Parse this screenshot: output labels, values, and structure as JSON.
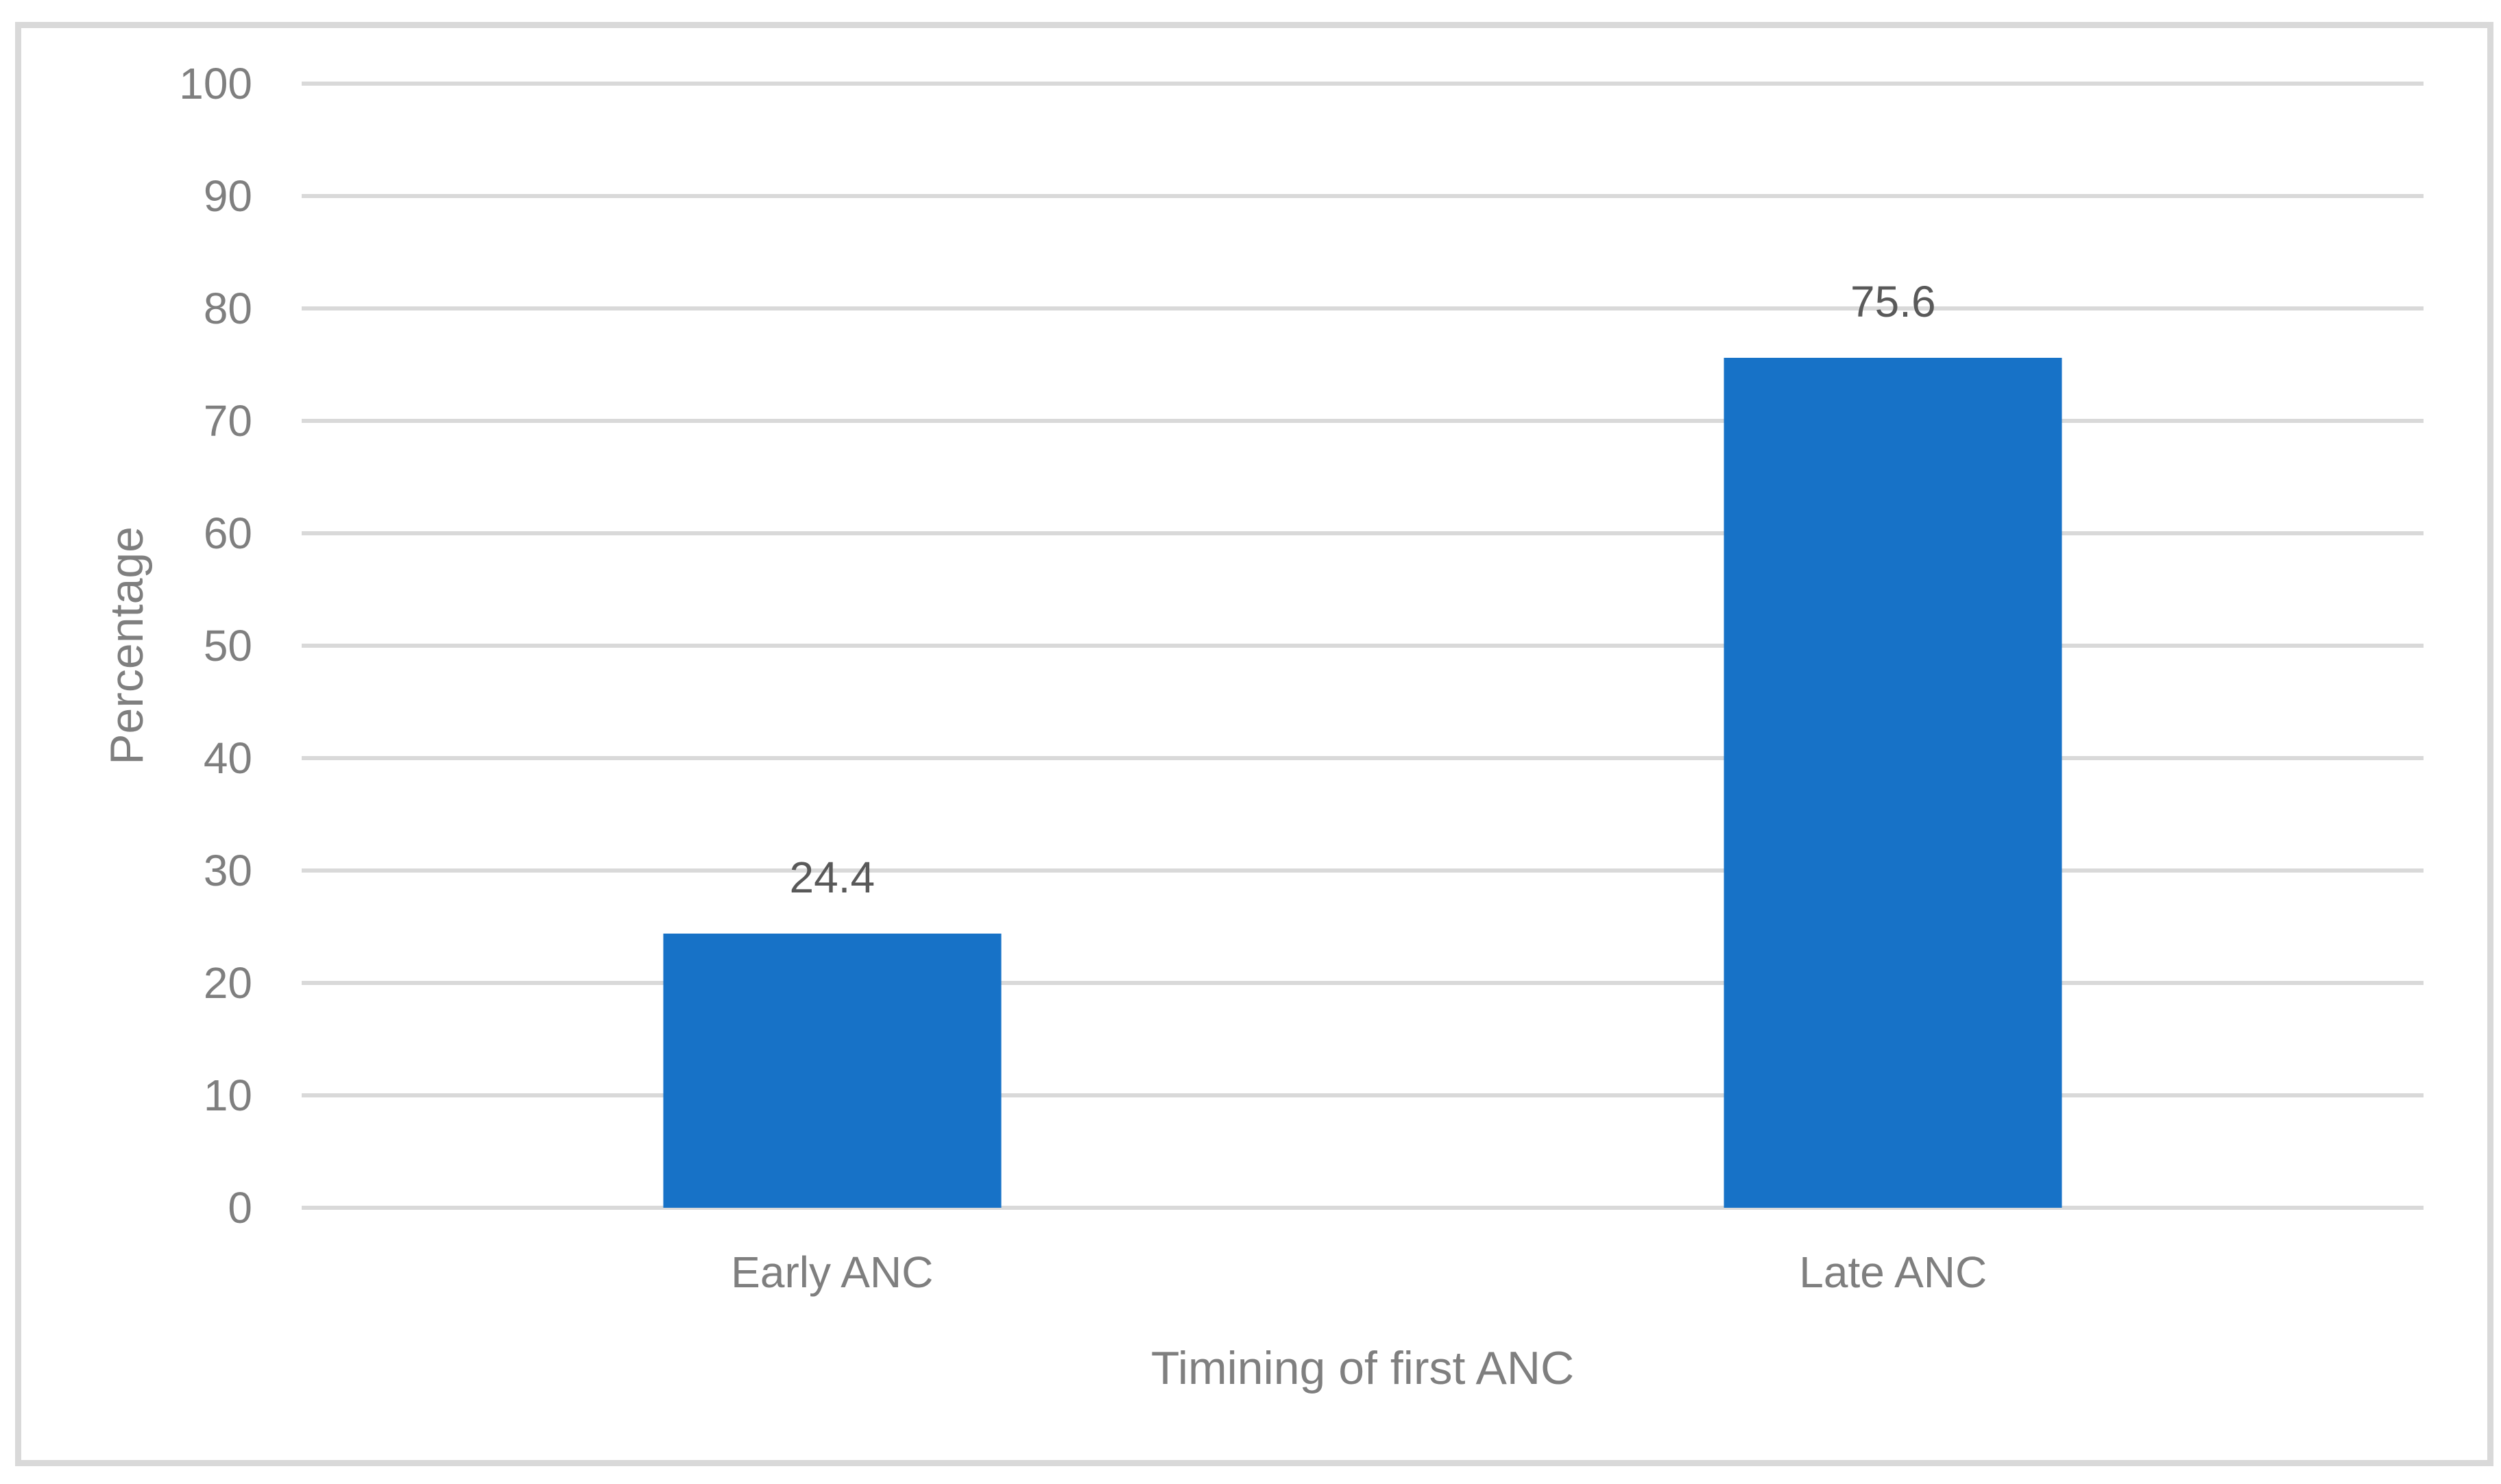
{
  "figure": {
    "background_color": "#FFFFFF",
    "border_color": "#D9D9D9"
  },
  "chart_data": {
    "type": "bar",
    "title": "",
    "categories": [
      "Early ANC",
      "Late ANC"
    ],
    "values": [
      24.4,
      75.6
    ],
    "data_labels": [
      "24.4",
      "75.6"
    ],
    "xlabel": "Timining of first ANC",
    "ylabel": "Percentage",
    "ylim": [
      0,
      100
    ],
    "ytick_interval": 10,
    "yticks": [
      0,
      10,
      20,
      30,
      40,
      50,
      60,
      70,
      80,
      90,
      100
    ],
    "grid": "horizontal",
    "legend": false,
    "bar_color": "#1772C7",
    "gridline_color": "#D9D9D9",
    "tick_label_color": "#7F7F7F",
    "category_label_color": "#7F7F7F",
    "axis_title_color": "#7F7F7F",
    "data_label_color": "#595959"
  }
}
